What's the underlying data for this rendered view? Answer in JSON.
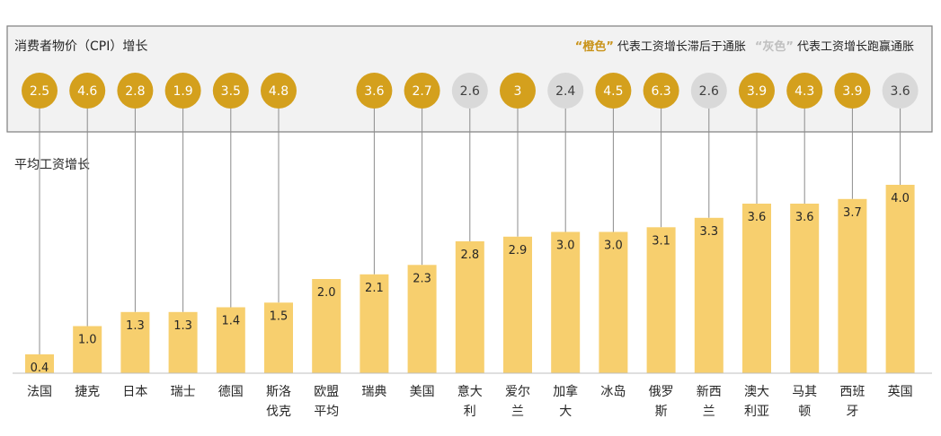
{
  "chart_data": {
    "type": "bar",
    "cpi_title": "消费者物价（CPI）增长",
    "legend": {
      "orange_term": "“橙色”",
      "orange_desc": "代表工资增长滞后于通胀",
      "gray_term": "“灰色”",
      "gray_desc": "代表工资增长跑赢通胀"
    },
    "bar_series_label": "平均工资增长",
    "categories": [
      "法国",
      "捷克",
      "日本",
      "瑞士",
      "德国",
      "斯洛伐克",
      "欧盟平均",
      "瑞典",
      "美国",
      "意大利",
      "爱尔兰",
      "加拿大",
      "冰岛",
      "俄罗斯",
      "新西兰",
      "澳大利亚",
      "马其顿",
      "西班牙",
      "英国"
    ],
    "category_lines": [
      [
        "法国"
      ],
      [
        "捷克"
      ],
      [
        "日本"
      ],
      [
        "瑞士"
      ],
      [
        "德国"
      ],
      [
        "斯洛",
        "伐克"
      ],
      [
        "欧盟",
        "平均"
      ],
      [
        "瑞典"
      ],
      [
        "美国"
      ],
      [
        "意大",
        "利"
      ],
      [
        "爱尔",
        "兰"
      ],
      [
        "加拿",
        "大"
      ],
      [
        "冰岛"
      ],
      [
        "俄罗",
        "斯"
      ],
      [
        "新西",
        "兰"
      ],
      [
        "澳大",
        "利亚"
      ],
      [
        "马其",
        "顿"
      ],
      [
        "西班",
        "牙"
      ],
      [
        "英国"
      ]
    ],
    "wage_growth": [
      0.4,
      1.0,
      1.3,
      1.3,
      1.4,
      1.5,
      2.0,
      2.1,
      2.3,
      2.8,
      2.9,
      3.0,
      3.0,
      3.1,
      3.3,
      3.6,
      3.6,
      3.7,
      4.0
    ],
    "wage_labels": [
      "0.4",
      "1.0",
      "1.3",
      "1.3",
      "1.4",
      "1.5",
      "2.0",
      "2.1",
      "2.3",
      "2.8",
      "2.9",
      "3.0",
      "3.0",
      "3.1",
      "3.3",
      "3.6",
      "3.6",
      "3.7",
      "4.0"
    ],
    "cpi_growth": [
      2.5,
      4.6,
      2.8,
      1.9,
      3.5,
      4.8,
      null,
      3.6,
      2.7,
      2.6,
      3,
      2.4,
      4.5,
      6.3,
      2.6,
      3.9,
      4.3,
      3.9,
      3.6
    ],
    "cpi_labels": [
      "2.5",
      "4.6",
      "2.8",
      "1.9",
      "3.5",
      "4.8",
      null,
      "3.6",
      "2.7",
      "2.6",
      "3",
      "2.4",
      "4.5",
      "6.3",
      "2.6",
      "3.9",
      "4.3",
      "3.9",
      "3.6"
    ],
    "cpi_status": [
      "orange",
      "orange",
      "orange",
      "orange",
      "orange",
      "orange",
      null,
      "orange",
      "orange",
      "gray",
      "orange",
      "gray",
      "orange",
      "orange",
      "gray",
      "orange",
      "orange",
      "orange",
      "gray"
    ],
    "ylim": [
      0,
      4.5
    ],
    "colors": {
      "bar": "#F7CF6E",
      "orange_circle": "#D4A01D",
      "gray_circle": "#D9D9D9",
      "panel_bg": "#F2F2F2",
      "panel_border": "#7F7F7F",
      "legend_orange": "#C9931A",
      "legend_gray": "#BFBFBF",
      "text": "#262626"
    }
  }
}
